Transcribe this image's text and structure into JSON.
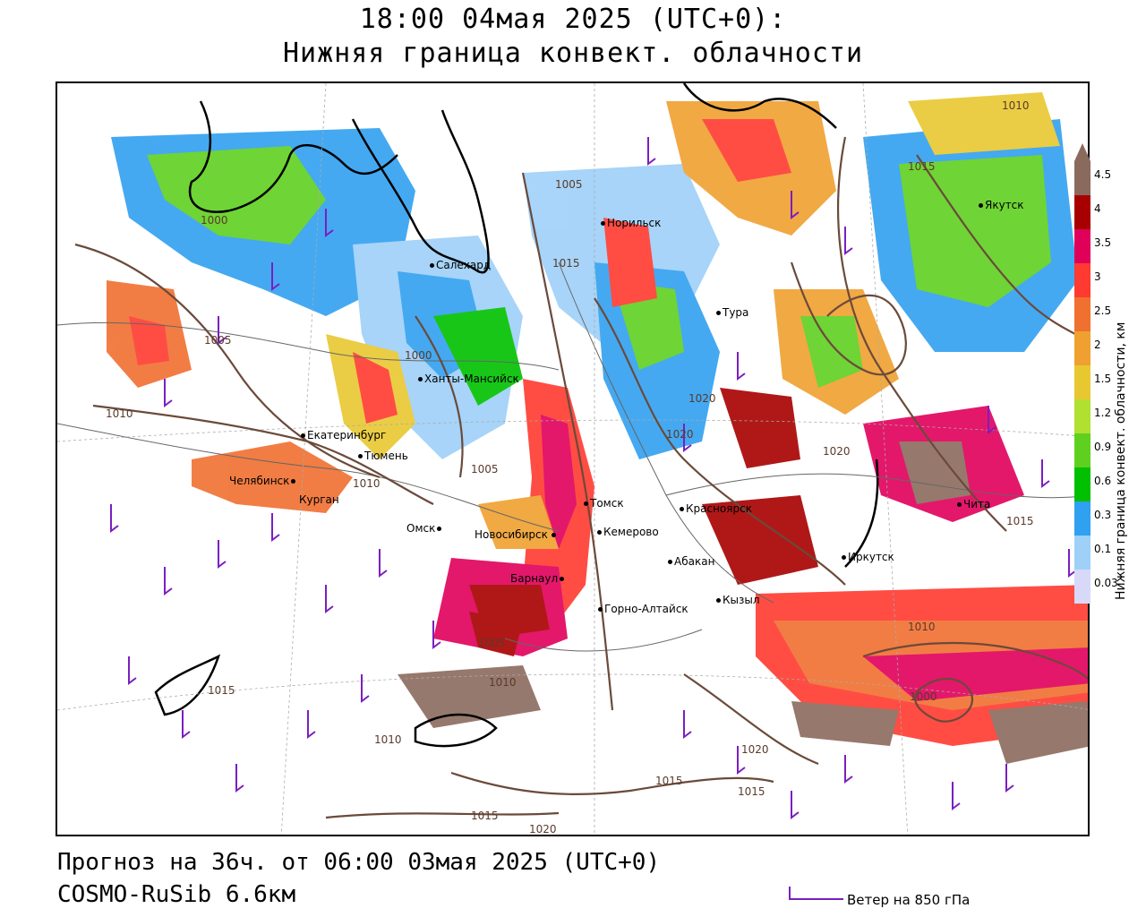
{
  "header": {
    "title_line1": "18:00 04мая 2025 (UTC+0):",
    "title_line2": "Нижняя граница конвект. облачности"
  },
  "map": {
    "cities": [
      {
        "name": "Салехард"
      },
      {
        "name": "Норильск"
      },
      {
        "name": "Тура"
      },
      {
        "name": "Якутск"
      },
      {
        "name": "Ханты-Мансийск"
      },
      {
        "name": "Екатеринбург"
      },
      {
        "name": "Тюмень"
      },
      {
        "name": "Челябинск"
      },
      {
        "name": "Курган"
      },
      {
        "name": "Омск"
      },
      {
        "name": "Новосибирск"
      },
      {
        "name": "Томск"
      },
      {
        "name": "Кемерово"
      },
      {
        "name": "Красноярск"
      },
      {
        "name": "Барнаул"
      },
      {
        "name": "Абакан"
      },
      {
        "name": "Горно-Алтайск"
      },
      {
        "name": "Кызыл"
      },
      {
        "name": "Иркутск"
      },
      {
        "name": "Чита"
      }
    ],
    "isobar_labels": [
      "1000",
      "1005",
      "1010",
      "1015",
      "1020"
    ]
  },
  "legend": {
    "title": "Нижняя граница конвект. облачности, км",
    "levels": [
      "4.5",
      "4",
      "3.5",
      "3",
      "2.5",
      "2",
      "1.5",
      "1.2",
      "0.9",
      "0.6",
      "0.3",
      "0.1",
      "0.03"
    ],
    "colors": [
      "#8b6a5e",
      "#a80000",
      "#e0005a",
      "#ff3a30",
      "#f07030",
      "#f0a030",
      "#e8c830",
      "#b0e030",
      "#60d020",
      "#00c000",
      "#30a0f0",
      "#9ed0f8",
      "#d8d8f8"
    ]
  },
  "footer": {
    "forecast": "Прогноз на 36ч. от 06:00 03мая 2025 (UTC+0)",
    "model": "COSMO-RuSib 6.6км",
    "wind_legend": "Ветер на 850 гПа"
  }
}
